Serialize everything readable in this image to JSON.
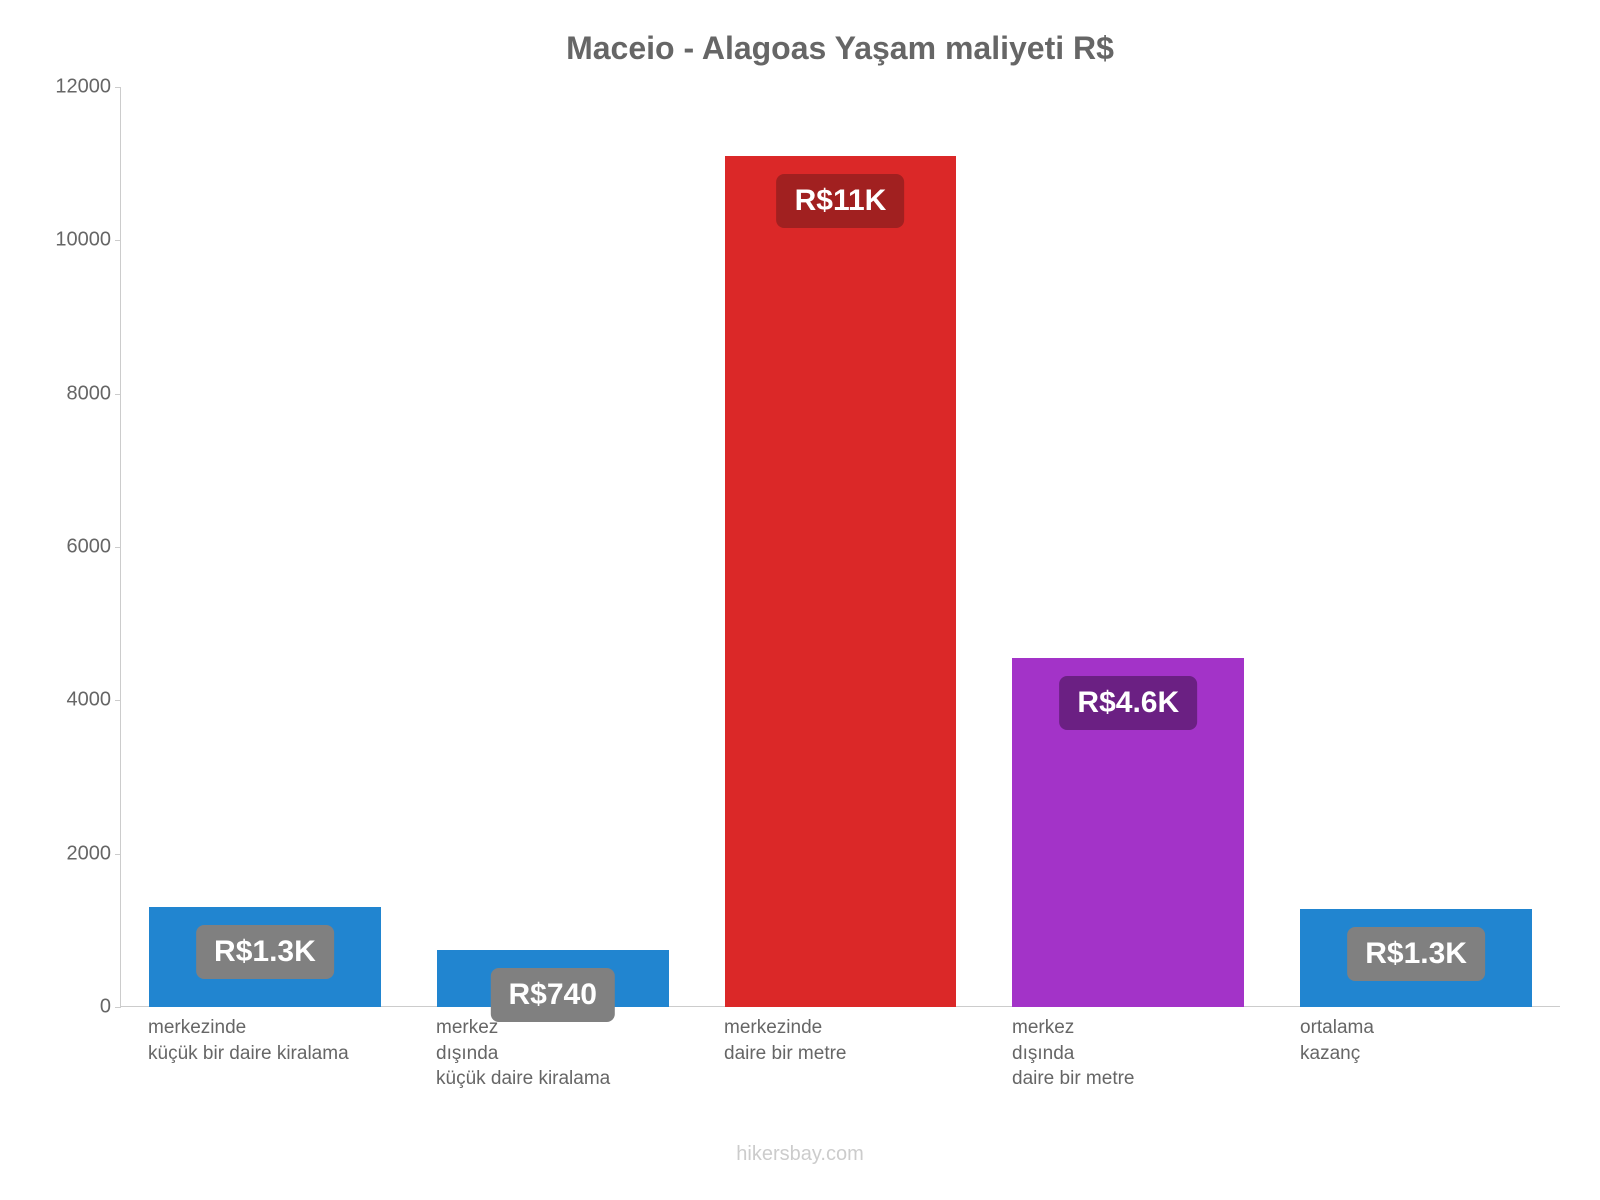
{
  "chart": {
    "type": "bar",
    "title": "Maceio - Alagoas Yaşam maliyeti R$",
    "title_color": "#666666",
    "title_fontsize": 32,
    "background_color": "#ffffff",
    "axis_line_color": "#cccccc",
    "ylim": [
      0,
      12000
    ],
    "yticks": [
      {
        "value": 0,
        "label": "0"
      },
      {
        "value": 2000,
        "label": "2000"
      },
      {
        "value": 4000,
        "label": "4000"
      },
      {
        "value": 6000,
        "label": "6000"
      },
      {
        "value": 8000,
        "label": "8000"
      },
      {
        "value": 10000,
        "label": "10000"
      },
      {
        "value": 12000,
        "label": "12000"
      }
    ],
    "ytick_color": "#666666",
    "ytick_fontsize": 20,
    "xlabel_color": "#666666",
    "xlabel_fontsize": 19,
    "bar_width_ratio": 0.78,
    "bars": [
      {
        "category_lines": [
          "merkezinde",
          "küçük bir daire kiralama"
        ],
        "value": 1300,
        "color": "#2185d0",
        "badge_label": "R$1.3K",
        "badge_bg": "#808080",
        "badge_text_color": "#ffffff"
      },
      {
        "category_lines": [
          "merkez",
          "dışında",
          "küçük daire kiralama"
        ],
        "value": 740,
        "color": "#2185d0",
        "badge_label": "R$740",
        "badge_bg": "#808080",
        "badge_text_color": "#ffffff"
      },
      {
        "category_lines": [
          "merkezinde",
          "daire bir metre"
        ],
        "value": 11100,
        "color": "#db2828",
        "badge_label": "R$11K",
        "badge_bg": "#a12020",
        "badge_text_color": "#ffffff"
      },
      {
        "category_lines": [
          "merkez",
          "dışında",
          "daire bir metre"
        ],
        "value": 4550,
        "color": "#a333c8",
        "badge_label": "R$4.6K",
        "badge_bg": "#6b2083",
        "badge_text_color": "#ffffff"
      },
      {
        "category_lines": [
          "ortalama",
          "kazanç"
        ],
        "value": 1280,
        "color": "#2185d0",
        "badge_label": "R$1.3K",
        "badge_bg": "#808080",
        "badge_text_color": "#ffffff"
      }
    ],
    "badge_fontsize": 30,
    "badge_radius": 8,
    "watermark": "hikersbay.com",
    "watermark_color": "#cccccc",
    "watermark_fontsize": 20
  }
}
